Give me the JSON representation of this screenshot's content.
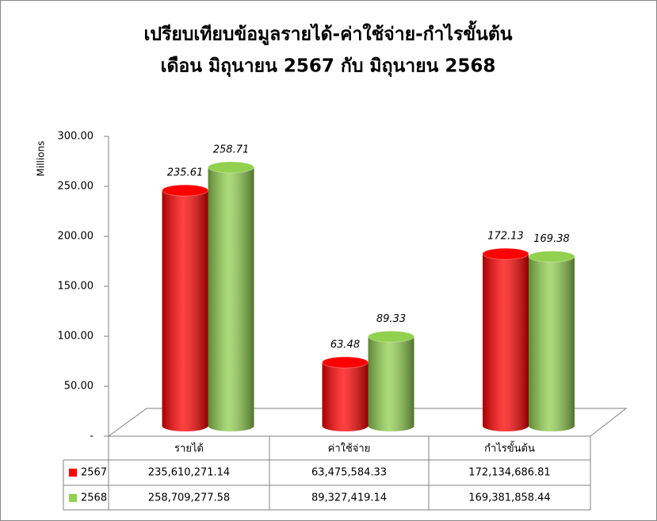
{
  "chart_data": {
    "type": "bar",
    "title": "เปรียบเทียบข้อมูลรายได้-ค่าใช้จ่าย-กำไรขั้นต้น",
    "subtitle": "เดือน มิถุนายน 2567 กับ มิถุนายน 2568",
    "y_axis_label": "Millions",
    "categories": [
      "รายได้",
      "ค่าใช้จ่าย",
      "กำไรขั้นต้น"
    ],
    "series": [
      {
        "name": "2567",
        "color": "#ff0000",
        "values": [
          235.61,
          63.48,
          172.13
        ],
        "value_labels": [
          "235.61",
          "63.48",
          "172.13"
        ]
      },
      {
        "name": "2568",
        "color": "#92d050",
        "values": [
          258.71,
          89.33,
          169.38
        ],
        "value_labels": [
          "258.71",
          "89.33",
          "169.38"
        ]
      }
    ],
    "ylim": [
      0,
      300
    ],
    "yticks": [
      {
        "value": 0,
        "label": "-"
      },
      {
        "value": 50,
        "label": "50.00"
      },
      {
        "value": 100,
        "label": "100.00"
      },
      {
        "value": 150,
        "label": "150.00"
      },
      {
        "value": 200,
        "label": "200.00"
      },
      {
        "value": 250,
        "label": "250.00"
      },
      {
        "value": 300,
        "label": "300.00"
      }
    ],
    "data_table": {
      "rows": [
        [
          "235,610,271.14",
          "63,475,584.33",
          "172,134,686.81"
        ],
        [
          "258,709,277.58",
          "89,327,419.14",
          "169,381,858.44"
        ]
      ]
    }
  }
}
